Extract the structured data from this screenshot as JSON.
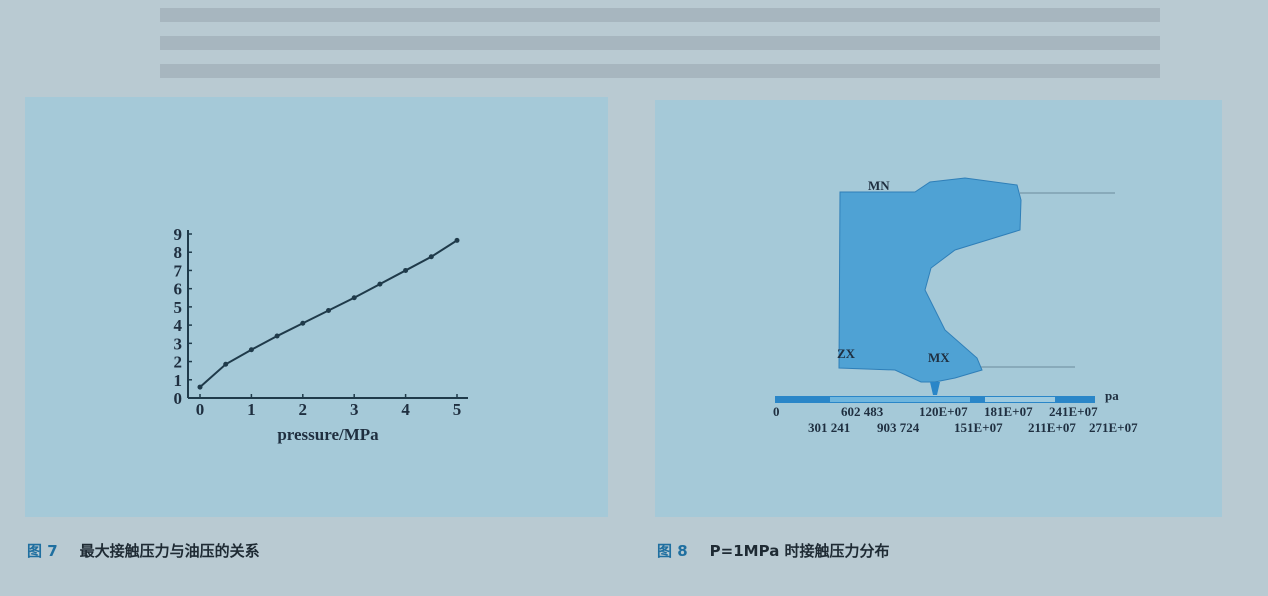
{
  "figure7": {
    "label": "图 7",
    "caption": "最大接触压力与油压的关系",
    "chart_data": {
      "type": "line",
      "xlabel": "pressure/MPa",
      "ylabel": "",
      "xlim": [
        0,
        5
      ],
      "ylim": [
        0,
        9
      ],
      "x_ticks": [
        "0",
        "1",
        "2",
        "3",
        "4",
        "5"
      ],
      "y_ticks": [
        "0",
        "1",
        "2",
        "3",
        "4",
        "5",
        "6",
        "7",
        "8",
        "9"
      ],
      "grid": false,
      "x": [
        0,
        0.5,
        1,
        1.5,
        2,
        2.5,
        3,
        3.5,
        4,
        4.5,
        5
      ],
      "y": [
        0.6,
        1.85,
        2.65,
        3.4,
        4.1,
        4.8,
        5.5,
        6.25,
        7.0,
        7.75,
        8.65
      ]
    }
  },
  "figure8": {
    "label": "图 8",
    "caption": "P=1MPa 时接触压力分布",
    "labels": {
      "mn": "MN",
      "zx": "ZX",
      "mx": "MX"
    },
    "unit": "pa",
    "scale_top": [
      "0",
      "602 483",
      "120E+07",
      "181E+07",
      "241E+07"
    ],
    "scale_bottom": [
      "301 241",
      "903 724",
      "151E+07",
      "211E+07",
      "271E+07"
    ],
    "colors": {
      "shape": "#3f9ad0",
      "bar": "#2a86c8"
    }
  }
}
